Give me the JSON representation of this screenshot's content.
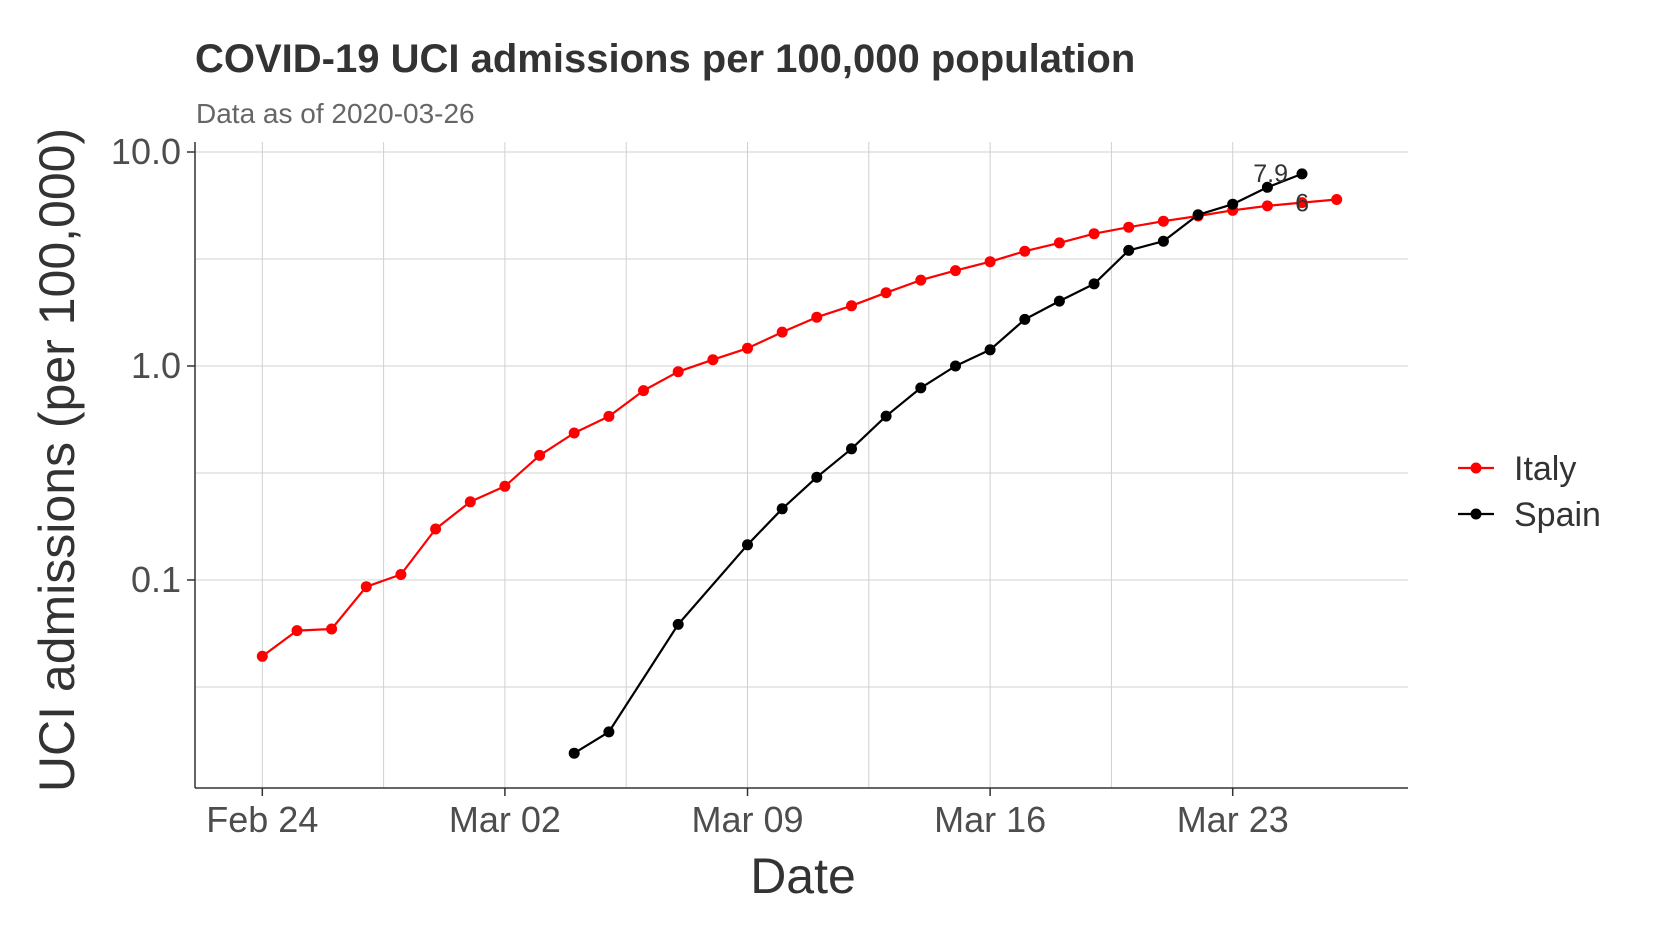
{
  "chart_data": {
    "type": "line",
    "title": "COVID-19 UCI admissions per 100,000 population",
    "subtitle": "Data as of 2020-03-26",
    "xlabel": "Date",
    "ylabel": "UCI  admissions (per 100,000)",
    "y_scale": "log10",
    "ylim": [
      0.012,
      10.0
    ],
    "xlim": [
      "2020-02-22",
      "2020-03-28"
    ],
    "grid": true,
    "legend_position": "right",
    "x_ticks": [
      {
        "value": "2020-02-24",
        "label": "Feb 24"
      },
      {
        "value": "2020-03-02",
        "label": "Mar 02"
      },
      {
        "value": "2020-03-09",
        "label": "Mar 09"
      },
      {
        "value": "2020-03-16",
        "label": "Mar 16"
      },
      {
        "value": "2020-03-23",
        "label": "Mar 23"
      }
    ],
    "y_ticks": [
      {
        "value": 0.1,
        "label": "0.1"
      },
      {
        "value": 1.0,
        "label": "1.0"
      },
      {
        "value": 10.0,
        "label": "10.0"
      }
    ],
    "series": [
      {
        "name": "Italy",
        "color": "#ff0000",
        "x": [
          "2020-02-24",
          "2020-02-25",
          "2020-02-26",
          "2020-02-27",
          "2020-02-28",
          "2020-02-29",
          "2020-03-01",
          "2020-03-02",
          "2020-03-03",
          "2020-03-04",
          "2020-03-05",
          "2020-03-06",
          "2020-03-07",
          "2020-03-08",
          "2020-03-09",
          "2020-03-10",
          "2020-03-11",
          "2020-03-12",
          "2020-03-13",
          "2020-03-14",
          "2020-03-15",
          "2020-03-16",
          "2020-03-17",
          "2020-03-18",
          "2020-03-19",
          "2020-03-20",
          "2020-03-21",
          "2020-03-22",
          "2020-03-23",
          "2020-03-24",
          "2020-03-25",
          "2020-03-26"
        ],
        "values": [
          0.044,
          0.058,
          0.059,
          0.093,
          0.106,
          0.173,
          0.232,
          0.274,
          0.382,
          0.486,
          0.581,
          0.767,
          0.94,
          1.07,
          1.21,
          1.44,
          1.69,
          1.91,
          2.2,
          2.52,
          2.79,
          3.07,
          3.44,
          3.76,
          4.15,
          4.45,
          4.75,
          5.02,
          5.34,
          5.6,
          5.8,
          6.0
        ],
        "end_label": "6"
      },
      {
        "name": "Spain",
        "color": "#000000",
        "x": [
          "2020-03-04",
          "2020-03-05",
          "2020-03-07",
          "2020-03-09",
          "2020-03-10",
          "2020-03-11",
          "2020-03-12",
          "2020-03-13",
          "2020-03-14",
          "2020-03-15",
          "2020-03-16",
          "2020-03-17",
          "2020-03-18",
          "2020-03-19",
          "2020-03-20",
          "2020-03-21",
          "2020-03-22",
          "2020-03-23",
          "2020-03-24",
          "2020-03-25"
        ],
        "values": [
          0.0155,
          0.0195,
          0.062,
          0.146,
          0.215,
          0.302,
          0.41,
          0.583,
          0.79,
          1.0,
          1.19,
          1.65,
          2.01,
          2.42,
          3.47,
          3.83,
          5.09,
          5.7,
          6.84,
          7.9
        ],
        "end_label": "7.9"
      }
    ]
  }
}
